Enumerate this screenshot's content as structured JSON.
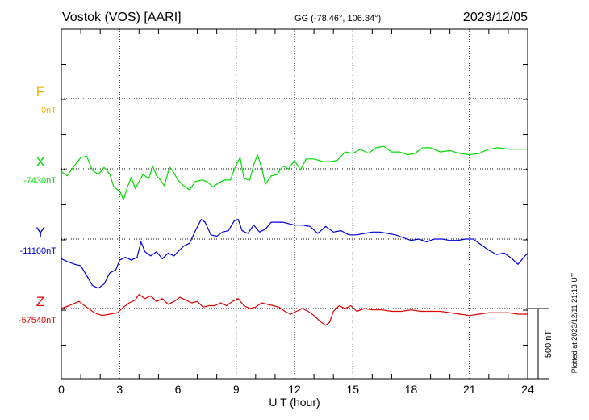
{
  "header": {
    "station": "Vostok (VOS)  [AARI]",
    "coords": "GG (-78.46°, 106.84°)",
    "date": "2023/12/05"
  },
  "side_note": "Plotted at 2023/12/11 21:13 UT",
  "scale_label": "500 nT",
  "colors": {
    "F": "#f0b400",
    "X": "#00dd00",
    "Y": "#0000dd",
    "Z": "#dd0000"
  },
  "chart_data": {
    "type": "line",
    "xlabel": "U T (hour)",
    "xlim": [
      0,
      24
    ],
    "xticks": [
      0,
      3,
      6,
      9,
      12,
      15,
      18,
      21,
      24
    ],
    "grid": true,
    "scale_nT": 500,
    "series": [
      {
        "name": "F",
        "baseline_label": "0nT",
        "baseline": 0,
        "points": []
      },
      {
        "name": "X",
        "baseline_label": "-7430nT",
        "baseline": -7430,
        "points": [
          [
            0,
            -7450
          ],
          [
            0.3,
            -7480
          ],
          [
            0.6,
            -7420
          ],
          [
            1.0,
            -7350
          ],
          [
            1.3,
            -7340
          ],
          [
            1.6,
            -7440
          ],
          [
            1.9,
            -7470
          ],
          [
            2.2,
            -7420
          ],
          [
            2.5,
            -7470
          ],
          [
            2.7,
            -7560
          ],
          [
            3.0,
            -7590
          ],
          [
            3.2,
            -7650
          ],
          [
            3.4,
            -7560
          ],
          [
            3.6,
            -7490
          ],
          [
            3.8,
            -7570
          ],
          [
            4.0,
            -7520
          ],
          [
            4.2,
            -7470
          ],
          [
            4.5,
            -7500
          ],
          [
            4.7,
            -7410
          ],
          [
            4.9,
            -7480
          ],
          [
            5.1,
            -7510
          ],
          [
            5.3,
            -7550
          ],
          [
            5.5,
            -7450
          ],
          [
            5.6,
            -7420
          ],
          [
            5.8,
            -7460
          ],
          [
            6.0,
            -7510
          ],
          [
            6.3,
            -7550
          ],
          [
            6.6,
            -7580
          ],
          [
            6.9,
            -7520
          ],
          [
            7.2,
            -7510
          ],
          [
            7.5,
            -7520
          ],
          [
            7.8,
            -7560
          ],
          [
            8.1,
            -7530
          ],
          [
            8.4,
            -7510
          ],
          [
            8.7,
            -7510
          ],
          [
            9.0,
            -7400
          ],
          [
            9.2,
            -7350
          ],
          [
            9.4,
            -7500
          ],
          [
            9.7,
            -7510
          ],
          [
            9.9,
            -7400
          ],
          [
            10.1,
            -7330
          ],
          [
            10.3,
            -7420
          ],
          [
            10.5,
            -7540
          ],
          [
            10.8,
            -7480
          ],
          [
            11.1,
            -7470
          ],
          [
            11.4,
            -7410
          ],
          [
            11.7,
            -7430
          ],
          [
            12.0,
            -7370
          ],
          [
            12.3,
            -7440
          ],
          [
            12.6,
            -7360
          ],
          [
            13.0,
            -7360
          ],
          [
            13.5,
            -7380
          ],
          [
            13.8,
            -7380
          ],
          [
            14.2,
            -7370
          ],
          [
            14.6,
            -7310
          ],
          [
            15.0,
            -7320
          ],
          [
            15.4,
            -7290
          ],
          [
            15.8,
            -7320
          ],
          [
            16.2,
            -7280
          ],
          [
            16.6,
            -7270
          ],
          [
            17.0,
            -7310
          ],
          [
            17.4,
            -7310
          ],
          [
            17.8,
            -7330
          ],
          [
            18.2,
            -7320
          ],
          [
            18.6,
            -7280
          ],
          [
            19.0,
            -7280
          ],
          [
            19.5,
            -7310
          ],
          [
            20.0,
            -7300
          ],
          [
            20.5,
            -7320
          ],
          [
            21.0,
            -7330
          ],
          [
            21.5,
            -7320
          ],
          [
            22.0,
            -7290
          ],
          [
            22.5,
            -7280
          ],
          [
            23.0,
            -7290
          ],
          [
            23.5,
            -7290
          ],
          [
            24.0,
            -7290
          ]
        ]
      },
      {
        "name": "Y",
        "baseline_label": "-11160nT",
        "baseline": -11160,
        "points": [
          [
            0,
            -11300
          ],
          [
            0.3,
            -11320
          ],
          [
            0.7,
            -11340
          ],
          [
            1.0,
            -11350
          ],
          [
            1.3,
            -11420
          ],
          [
            1.6,
            -11490
          ],
          [
            1.9,
            -11510
          ],
          [
            2.2,
            -11480
          ],
          [
            2.5,
            -11400
          ],
          [
            2.8,
            -11380
          ],
          [
            3.0,
            -11310
          ],
          [
            3.3,
            -11290
          ],
          [
            3.6,
            -11310
          ],
          [
            3.9,
            -11290
          ],
          [
            4.1,
            -11180
          ],
          [
            4.3,
            -11250
          ],
          [
            4.6,
            -11280
          ],
          [
            4.9,
            -11250
          ],
          [
            5.2,
            -11300
          ],
          [
            5.5,
            -11260
          ],
          [
            5.8,
            -11280
          ],
          [
            6.0,
            -11250
          ],
          [
            6.3,
            -11210
          ],
          [
            6.6,
            -11190
          ],
          [
            6.9,
            -11100
          ],
          [
            7.2,
            -11020
          ],
          [
            7.4,
            -11040
          ],
          [
            7.7,
            -11130
          ],
          [
            8.0,
            -11140
          ],
          [
            8.3,
            -11110
          ],
          [
            8.6,
            -11100
          ],
          [
            8.9,
            -11030
          ],
          [
            9.1,
            -11020
          ],
          [
            9.3,
            -11100
          ],
          [
            9.6,
            -11120
          ],
          [
            9.9,
            -11060
          ],
          [
            10.2,
            -11110
          ],
          [
            10.5,
            -11090
          ],
          [
            10.8,
            -11040
          ],
          [
            11.1,
            -11040
          ],
          [
            11.4,
            -11040
          ],
          [
            11.7,
            -11050
          ],
          [
            12.0,
            -11060
          ],
          [
            12.4,
            -11060
          ],
          [
            12.8,
            -11070
          ],
          [
            13.2,
            -11120
          ],
          [
            13.6,
            -11070
          ],
          [
            14.0,
            -11110
          ],
          [
            14.4,
            -11100
          ],
          [
            14.8,
            -11130
          ],
          [
            15.2,
            -11130
          ],
          [
            15.6,
            -11120
          ],
          [
            16.0,
            -11110
          ],
          [
            16.4,
            -11110
          ],
          [
            16.8,
            -11120
          ],
          [
            17.2,
            -11130
          ],
          [
            17.6,
            -11150
          ],
          [
            18.0,
            -11170
          ],
          [
            18.4,
            -11160
          ],
          [
            18.8,
            -11180
          ],
          [
            19.2,
            -11160
          ],
          [
            19.6,
            -11160
          ],
          [
            20.0,
            -11170
          ],
          [
            20.4,
            -11170
          ],
          [
            20.8,
            -11160
          ],
          [
            21.2,
            -11160
          ],
          [
            21.6,
            -11200
          ],
          [
            22.0,
            -11240
          ],
          [
            22.4,
            -11270
          ],
          [
            22.8,
            -11260
          ],
          [
            23.2,
            -11300
          ],
          [
            23.5,
            -11340
          ],
          [
            23.8,
            -11290
          ],
          [
            24.0,
            -11260
          ]
        ]
      },
      {
        "name": "Z",
        "baseline_label": "-57540nT",
        "baseline": -57540,
        "points": [
          [
            0,
            -57540
          ],
          [
            0.4,
            -57520
          ],
          [
            0.9,
            -57490
          ],
          [
            1.3,
            -57530
          ],
          [
            1.7,
            -57570
          ],
          [
            2.1,
            -57590
          ],
          [
            2.5,
            -57580
          ],
          [
            2.9,
            -57570
          ],
          [
            3.2,
            -57530
          ],
          [
            3.5,
            -57500
          ],
          [
            3.8,
            -57480
          ],
          [
            4.0,
            -57440
          ],
          [
            4.3,
            -57470
          ],
          [
            4.6,
            -57450
          ],
          [
            4.9,
            -57490
          ],
          [
            5.2,
            -57470
          ],
          [
            5.5,
            -57510
          ],
          [
            5.8,
            -57490
          ],
          [
            6.1,
            -57460
          ],
          [
            6.4,
            -57480
          ],
          [
            6.7,
            -57500
          ],
          [
            7.0,
            -57490
          ],
          [
            7.3,
            -57530
          ],
          [
            7.6,
            -57520
          ],
          [
            7.9,
            -57520
          ],
          [
            8.2,
            -57500
          ],
          [
            8.5,
            -57520
          ],
          [
            8.8,
            -57490
          ],
          [
            9.1,
            -57470
          ],
          [
            9.4,
            -57520
          ],
          [
            9.7,
            -57540
          ],
          [
            10.0,
            -57530
          ],
          [
            10.3,
            -57500
          ],
          [
            10.6,
            -57510
          ],
          [
            10.9,
            -57520
          ],
          [
            11.2,
            -57530
          ],
          [
            11.5,
            -57560
          ],
          [
            11.8,
            -57580
          ],
          [
            12.1,
            -57560
          ],
          [
            12.4,
            -57540
          ],
          [
            12.7,
            -57560
          ],
          [
            13.0,
            -57590
          ],
          [
            13.3,
            -57630
          ],
          [
            13.6,
            -57660
          ],
          [
            13.8,
            -57640
          ],
          [
            14.0,
            -57560
          ],
          [
            14.3,
            -57520
          ],
          [
            14.6,
            -57540
          ],
          [
            14.9,
            -57520
          ],
          [
            15.2,
            -57560
          ],
          [
            15.6,
            -57540
          ],
          [
            16.0,
            -57550
          ],
          [
            16.5,
            -57550
          ],
          [
            17.0,
            -57560
          ],
          [
            17.5,
            -57560
          ],
          [
            18.0,
            -57550
          ],
          [
            18.5,
            -57560
          ],
          [
            19.0,
            -57560
          ],
          [
            19.5,
            -57560
          ],
          [
            20.0,
            -57570
          ],
          [
            20.5,
            -57580
          ],
          [
            21.0,
            -57590
          ],
          [
            21.5,
            -57580
          ],
          [
            22.0,
            -57570
          ],
          [
            22.5,
            -57570
          ],
          [
            23.0,
            -57570
          ],
          [
            23.5,
            -57580
          ],
          [
            24.0,
            -57580
          ]
        ]
      }
    ]
  }
}
